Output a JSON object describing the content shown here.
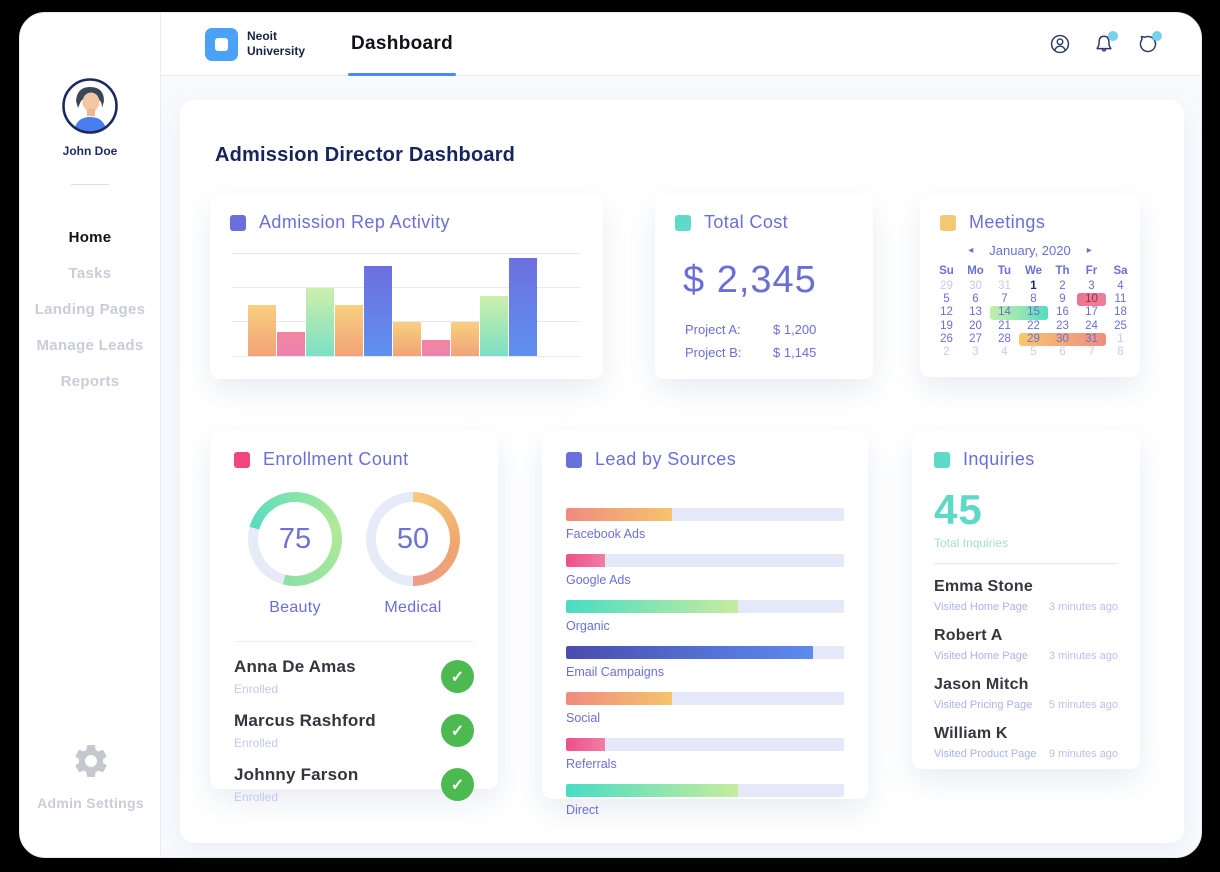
{
  "palette": {
    "accent_blue": "#4a8cf7",
    "purple": "#6a6fdc",
    "teal": "#5ed9c7",
    "orange": "#f5c878",
    "pink": "#f0487e",
    "navy": "#16265c",
    "green_check": "#4cba50",
    "notification_dot": "#74d3ea"
  },
  "topbar": {
    "logo_line1": "Neoit",
    "logo_line2": "University",
    "tab": "Dashboard",
    "icons": [
      "profile-icon",
      "bell-icon",
      "chat-icon"
    ]
  },
  "sidebar": {
    "user_name": "John Doe",
    "items": [
      {
        "label": "Home",
        "active": true
      },
      {
        "label": "Tasks",
        "active": false
      },
      {
        "label": "Landing Pages",
        "active": false
      },
      {
        "label": "Manage Leads",
        "active": false
      },
      {
        "label": "Reports",
        "active": false
      }
    ],
    "admin_settings_label": "Admin Settings"
  },
  "page_title": "Admission Director Dashboard",
  "cards": {
    "rep_activity": {
      "title": "Admission Rep Activity",
      "legend_color": "#6a6fdc",
      "chart": {
        "type": "bar",
        "ylim": [
          0,
          100
        ],
        "bars": [
          {
            "value": 50,
            "color": "orange"
          },
          {
            "value": 23,
            "color": "pink"
          },
          {
            "value": 66,
            "color": "green"
          },
          {
            "value": 50,
            "color": "orange"
          },
          {
            "value": 87,
            "color": "blue"
          },
          {
            "value": 33,
            "color": "orange"
          },
          {
            "value": 16,
            "color": "pink"
          },
          {
            "value": 33,
            "color": "orange"
          },
          {
            "value": 58,
            "color": "green"
          },
          {
            "value": 95,
            "color": "blue"
          }
        ]
      }
    },
    "total_cost": {
      "title": "Total Cost",
      "legend_color": "#5fd9c8",
      "amount": "$ 2,345",
      "rows": [
        {
          "label": "Project A:",
          "value": "$ 1,200"
        },
        {
          "label": "Project B:",
          "value": "$ 1,145"
        }
      ]
    },
    "meetings": {
      "title": "Meetings",
      "legend_color": "#f5c878",
      "calendar": {
        "month_label": "January, 2020",
        "prev_glyph": "◂",
        "next_glyph": "▸",
        "day_headers": [
          "Su",
          "Mo",
          "Tu",
          "We",
          "Th",
          "Fr",
          "Sa"
        ],
        "weeks": [
          [
            {
              "d": "29",
              "cls": "cal-muted"
            },
            {
              "d": "30",
              "cls": "cal-muted"
            },
            {
              "d": "31",
              "cls": "cal-muted"
            },
            {
              "d": "1",
              "cls": "cal-bold"
            },
            {
              "d": "2",
              "cls": ""
            },
            {
              "d": "3",
              "cls": ""
            },
            {
              "d": "4",
              "cls": ""
            }
          ],
          [
            {
              "d": "5",
              "cls": ""
            },
            {
              "d": "6",
              "cls": ""
            },
            {
              "d": "7",
              "cls": ""
            },
            {
              "d": "8",
              "cls": ""
            },
            {
              "d": "9",
              "cls": ""
            },
            {
              "d": "10",
              "cls": "cal-pink"
            },
            {
              "d": "11",
              "cls": ""
            }
          ],
          [
            {
              "d": "12",
              "cls": ""
            },
            {
              "d": "13",
              "cls": ""
            },
            {
              "d": "14",
              "cls": "cal-g1"
            },
            {
              "d": "15",
              "cls": "cal-g2"
            },
            {
              "d": "16",
              "cls": ""
            },
            {
              "d": "17",
              "cls": ""
            },
            {
              "d": "18",
              "cls": ""
            }
          ],
          [
            {
              "d": "19",
              "cls": ""
            },
            {
              "d": "20",
              "cls": ""
            },
            {
              "d": "21",
              "cls": ""
            },
            {
              "d": "22",
              "cls": ""
            },
            {
              "d": "23",
              "cls": ""
            },
            {
              "d": "24",
              "cls": ""
            },
            {
              "d": "25",
              "cls": ""
            }
          ],
          [
            {
              "d": "26",
              "cls": ""
            },
            {
              "d": "27",
              "cls": ""
            },
            {
              "d": "28",
              "cls": ""
            },
            {
              "d": "29",
              "cls": "cal-o1"
            },
            {
              "d": "30",
              "cls": "cal-o2"
            },
            {
              "d": "31",
              "cls": "cal-o3"
            },
            {
              "d": "1",
              "cls": "cal-muted"
            }
          ],
          [
            {
              "d": "2",
              "cls": "cal-muted"
            },
            {
              "d": "3",
              "cls": "cal-muted"
            },
            {
              "d": "4",
              "cls": "cal-muted"
            },
            {
              "d": "5",
              "cls": "cal-muted"
            },
            {
              "d": "6",
              "cls": "cal-muted"
            },
            {
              "d": "7",
              "cls": "cal-muted"
            },
            {
              "d": "8",
              "cls": "cal-muted"
            }
          ]
        ]
      }
    },
    "enrollment": {
      "title": "Enrollment Count",
      "legend_color": "#f0487e",
      "donuts": [
        {
          "value": "75",
          "label": "Beauty",
          "pct": 75,
          "start_deg": 285,
          "colors": [
            "#58dcc1",
            "#b2ea97",
            "#8ce0a6"
          ],
          "track": "#e7eaf7"
        },
        {
          "value": "50",
          "label": "Medical",
          "pct": 50,
          "start_deg": 0,
          "colors": [
            "#f7cb7d",
            "#efa76f",
            "#eb9c8b"
          ],
          "track": "#e7eaf7"
        }
      ],
      "students": [
        {
          "name": "Anna De Amas",
          "status": "Enrolled"
        },
        {
          "name": "Marcus Rashford",
          "status": "Enrolled"
        },
        {
          "name": "Johnny Farson",
          "status": "Enrolled"
        }
      ]
    },
    "lead_sources": {
      "title": "Lead by Sources",
      "legend_color": "#6a6fdc",
      "chart": {
        "type": "bar",
        "orientation": "horizontal",
        "xlim": [
          0,
          100
        ],
        "bars": [
          {
            "label": "Facebook Ads",
            "pct": 38,
            "color": "orange"
          },
          {
            "label": "Google Ads",
            "pct": 14,
            "color": "pink"
          },
          {
            "label": "Organic",
            "pct": 62,
            "color": "green"
          },
          {
            "label": "Email Campaigns",
            "pct": 89,
            "color": "blue"
          },
          {
            "label": "Social",
            "pct": 38,
            "color": "orange"
          },
          {
            "label": "Referrals",
            "pct": 14,
            "color": "pink"
          },
          {
            "label": "Direct",
            "pct": 62,
            "color": "green"
          }
        ]
      }
    },
    "inquiries": {
      "title": "Inquiries",
      "legend_color": "#5fd9c8",
      "total": "45",
      "total_label": "Total Inquiries",
      "visitors": [
        {
          "name": "Emma Stone",
          "page": "Visited Home Page",
          "time": "3 minutes ago"
        },
        {
          "name": "Robert A",
          "page": "Visited Home Page",
          "time": "3 minutes ago"
        },
        {
          "name": "Jason Mitch",
          "page": "Visited Pricing Page",
          "time": "5 minutes ago"
        },
        {
          "name": "William K",
          "page": "Visited Product Page",
          "time": "9 minutes ago"
        }
      ]
    }
  }
}
